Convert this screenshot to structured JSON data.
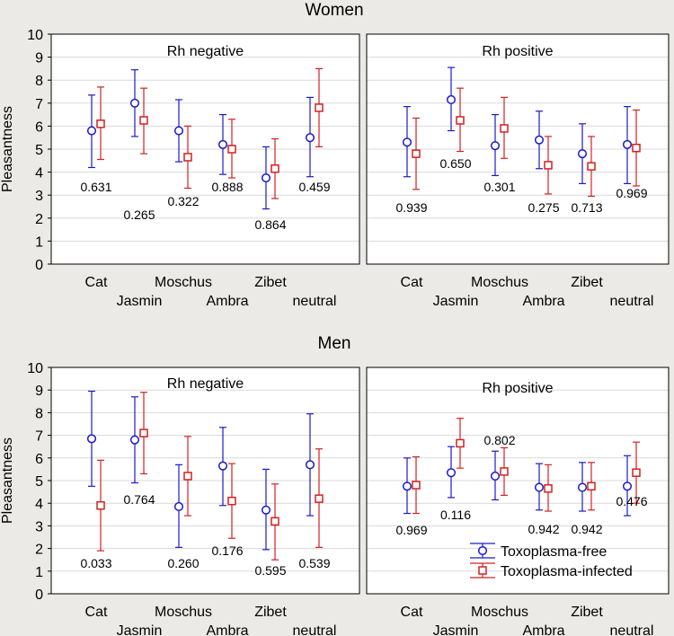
{
  "colors": {
    "free": "#1a1ac8",
    "infected": "#d42020",
    "background": "#eceae6",
    "plot_bg": "#ffffff",
    "grid": "#d9d9d9"
  },
  "ylabel": "Pleasantness",
  "legend": {
    "free": "Toxoplasma-free",
    "infected": "Toxoplasma-infected",
    "position": "bottom-right"
  },
  "chart_data": [
    {
      "type": "scatter",
      "section": "Women",
      "title": "Rh negative",
      "ylabel": "Pleasantness",
      "ylim": [
        0,
        10
      ],
      "yticks": [
        "0",
        "1",
        "2",
        "3",
        "4",
        "5",
        "6",
        "7",
        "8",
        "9",
        "10"
      ],
      "categories": [
        "Cat",
        "Jasmin",
        "Moschus",
        "Ambra",
        "Zibet",
        "neutral"
      ],
      "series": [
        {
          "name": "Toxoplasma-free",
          "values": [
            5.8,
            7.0,
            5.8,
            5.2,
            3.75,
            5.5
          ],
          "lower": [
            4.2,
            5.55,
            4.45,
            3.9,
            2.4,
            3.8
          ],
          "upper": [
            7.35,
            8.45,
            7.15,
            6.5,
            5.1,
            7.25
          ]
        },
        {
          "name": "Toxoplasma-infected",
          "values": [
            6.1,
            6.25,
            4.65,
            5.0,
            4.15,
            6.8
          ],
          "lower": [
            4.55,
            4.8,
            3.3,
            3.75,
            2.85,
            5.1
          ],
          "upper": [
            7.7,
            7.65,
            6.0,
            6.3,
            5.45,
            8.5
          ]
        }
      ],
      "pvalues": [
        "0.631",
        "0.265",
        "0.322",
        "0.888",
        "0.864",
        "0.459"
      ]
    },
    {
      "type": "scatter",
      "section": "Women",
      "title": "Rh positive",
      "ylim": [
        0,
        10
      ],
      "categories": [
        "Cat",
        "Jasmin",
        "Moschus",
        "Ambra",
        "Zibet",
        "neutral"
      ],
      "series": [
        {
          "name": "Toxoplasma-free",
          "values": [
            5.3,
            7.15,
            5.15,
            5.4,
            4.8,
            5.2
          ],
          "lower": [
            3.8,
            5.8,
            3.85,
            4.15,
            3.5,
            3.5
          ],
          "upper": [
            6.85,
            8.55,
            6.5,
            6.65,
            6.1,
            6.85
          ]
        },
        {
          "name": "Toxoplasma-infected",
          "values": [
            4.8,
            6.25,
            5.9,
            4.3,
            4.25,
            5.05
          ],
          "lower": [
            3.25,
            4.9,
            4.6,
            3.05,
            2.95,
            3.4
          ],
          "upper": [
            6.35,
            7.65,
            7.25,
            5.55,
            5.55,
            6.7
          ]
        }
      ],
      "pvalues": [
        "0.939",
        "0.650",
        "0.301",
        "0.275",
        "0.713",
        "0.969"
      ]
    },
    {
      "type": "scatter",
      "section": "Men",
      "title": "Rh negative",
      "ylabel": "Pleasantness",
      "ylim": [
        0,
        10
      ],
      "yticks": [
        "0",
        "1",
        "2",
        "3",
        "4",
        "5",
        "6",
        "7",
        "8",
        "9",
        "10"
      ],
      "categories": [
        "Cat",
        "Jasmin",
        "Moschus",
        "Ambra",
        "Zibet",
        "neutral"
      ],
      "series": [
        {
          "name": "Toxoplasma-free",
          "values": [
            6.85,
            6.8,
            3.85,
            5.65,
            3.7,
            5.7
          ],
          "lower": [
            4.75,
            4.9,
            2.05,
            3.9,
            1.95,
            3.45
          ],
          "upper": [
            8.95,
            8.7,
            5.7,
            7.35,
            5.5,
            7.95
          ]
        },
        {
          "name": "Toxoplasma-infected",
          "values": [
            3.9,
            7.1,
            5.2,
            4.1,
            3.2,
            4.2
          ],
          "lower": [
            1.9,
            5.3,
            3.45,
            2.45,
            1.5,
            2.05
          ],
          "upper": [
            5.9,
            8.9,
            6.95,
            5.75,
            4.85,
            6.4
          ]
        }
      ],
      "pvalues": [
        "0.033",
        "0.764",
        "0.260",
        "0.176",
        "0.595",
        "0.539"
      ]
    },
    {
      "type": "scatter",
      "section": "Men",
      "title": "Rh positive",
      "ylim": [
        0,
        10
      ],
      "categories": [
        "Cat",
        "Jasmin",
        "Moschus",
        "Ambra",
        "Zibet",
        "neutral"
      ],
      "series": [
        {
          "name": "Toxoplasma-free",
          "values": [
            4.75,
            5.35,
            5.2,
            4.7,
            4.7,
            4.75
          ],
          "lower": [
            3.55,
            4.25,
            4.15,
            3.7,
            3.65,
            3.45
          ],
          "upper": [
            6.0,
            6.5,
            6.3,
            5.75,
            5.8,
            6.1
          ]
        },
        {
          "name": "Toxoplasma-infected",
          "values": [
            4.8,
            6.65,
            5.4,
            4.65,
            4.75,
            5.35
          ],
          "lower": [
            3.55,
            5.55,
            4.35,
            3.65,
            3.7,
            4.0
          ],
          "upper": [
            6.05,
            7.75,
            6.45,
            5.7,
            5.8,
            6.7
          ]
        }
      ],
      "pvalues": [
        "0.969",
        "0.116",
        "0.802",
        "0.942",
        "0.942",
        "0.476"
      ]
    }
  ]
}
